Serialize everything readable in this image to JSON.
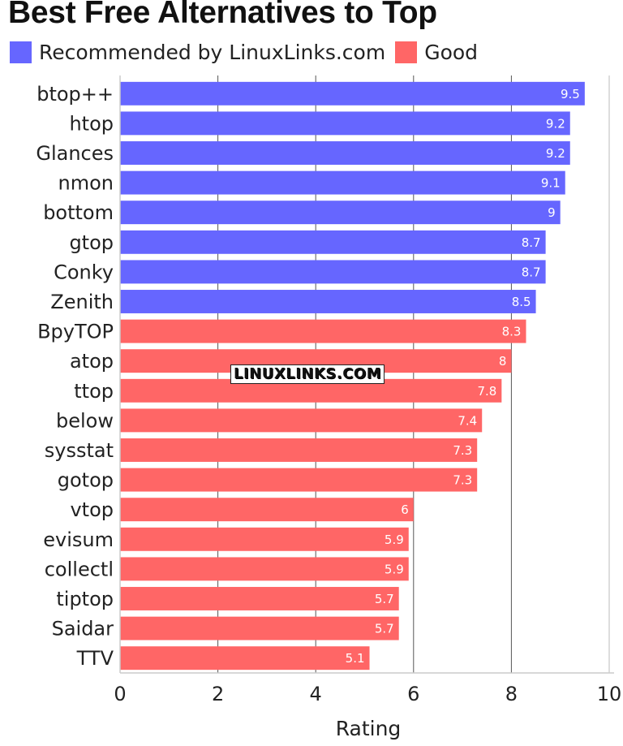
{
  "title": "Best Free Alternatives to Top",
  "watermark": "LINUXLINKS.COM",
  "legend": [
    {
      "label": "Recommended by LinuxLinks.com",
      "color": "#6666ff"
    },
    {
      "label": "Good",
      "color": "#ff6666"
    }
  ],
  "chart_data": {
    "type": "bar",
    "orientation": "horizontal",
    "title": "Best Free Alternatives to Top",
    "xlabel": "Rating",
    "ylabel": "",
    "xlim": [
      0,
      10
    ],
    "xticks": [
      0,
      2,
      4,
      6,
      8,
      10
    ],
    "grid": true,
    "legend_position": "top-left",
    "categories": [
      "btop++",
      "htop",
      "Glances",
      "nmon",
      "bottom",
      "gtop",
      "Conky",
      "Zenith",
      "BpyTOP",
      "atop",
      "ttop",
      "below",
      "sysstat",
      "gotop",
      "vtop",
      "evisum",
      "collectl",
      "tiptop",
      "Saidar",
      "TTV"
    ],
    "values": [
      9.5,
      9.2,
      9.2,
      9.1,
      9,
      8.7,
      8.7,
      8.5,
      8.3,
      8,
      7.8,
      7.4,
      7.3,
      7.3,
      6,
      5.9,
      5.9,
      5.7,
      5.7,
      5.1
    ],
    "value_labels": [
      "9.5",
      "9.2",
      "9.2",
      "9.1",
      "9",
      "8.7",
      "8.7",
      "8.5",
      "8.3",
      "8",
      "7.8",
      "7.4",
      "7.3",
      "7.3",
      "6",
      "5.9",
      "5.9",
      "5.7",
      "5.7",
      "5.1"
    ],
    "groups": [
      "Recommended by LinuxLinks.com",
      "Recommended by LinuxLinks.com",
      "Recommended by LinuxLinks.com",
      "Recommended by LinuxLinks.com",
      "Recommended by LinuxLinks.com",
      "Recommended by LinuxLinks.com",
      "Recommended by LinuxLinks.com",
      "Recommended by LinuxLinks.com",
      "Good",
      "Good",
      "Good",
      "Good",
      "Good",
      "Good",
      "Good",
      "Good",
      "Good",
      "Good",
      "Good",
      "Good"
    ],
    "colors": {
      "Recommended by LinuxLinks.com": "#6666ff",
      "Good": "#ff6666"
    }
  }
}
